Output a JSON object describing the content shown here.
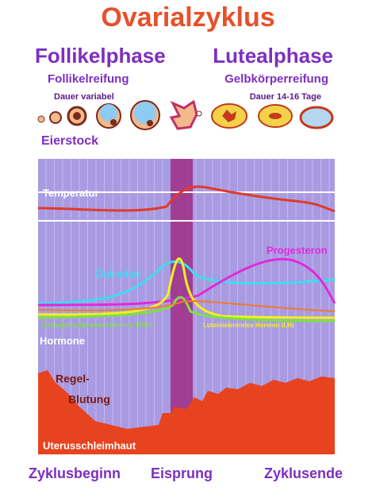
{
  "header": {
    "title": "Ovarialzyklus"
  },
  "phases": [
    {
      "name": "Follikelphase",
      "process": "Follikelreifung",
      "duration": "Dauer variabel"
    },
    {
      "name": "Lutealphase",
      "process": "Gelbkörperreifung",
      "duration": "Dauer 14-16 Tage"
    }
  ],
  "ovary_label": "Eierstock",
  "chart": {
    "temperature": "Temperatur",
    "progesterone": "Progesteron",
    "estradiol": "Östradiol",
    "fsh": "Follikelstimulierendes Hormon (FSH)",
    "lh": "Luteinisierendes Hormon (LH)",
    "hormones": "Hormone",
    "bleeding": [
      "Regel-",
      "Blutung"
    ],
    "endometrium": "Uterusschleimhaut"
  },
  "timeline": [
    "Zyklusbeginn",
    "Eisprung",
    "Zyklusende"
  ]
}
